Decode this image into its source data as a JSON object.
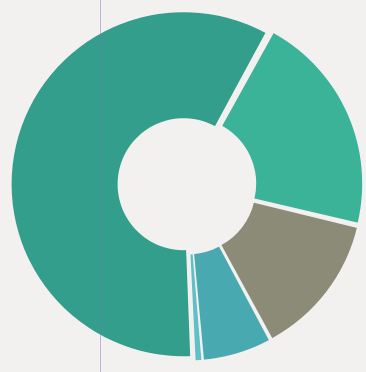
{
  "page": {
    "background": "#f3f1ef"
  },
  "chart_data": {
    "type": "pie",
    "style": "donut",
    "legend": "none",
    "exploded": true,
    "slices": [
      {
        "value": 67.0,
        "color": "#329e8b"
      },
      {
        "value": 23.7,
        "color": "#3bb398"
      },
      {
        "value": 15.3,
        "color": "#8b8b78"
      },
      {
        "value": 7.4,
        "color": "#48aab0"
      },
      {
        "value": 0.8,
        "color": "#5fc0c8"
      }
    ]
  },
  "decor": {
    "scan_line_color": "#7c70c0"
  }
}
